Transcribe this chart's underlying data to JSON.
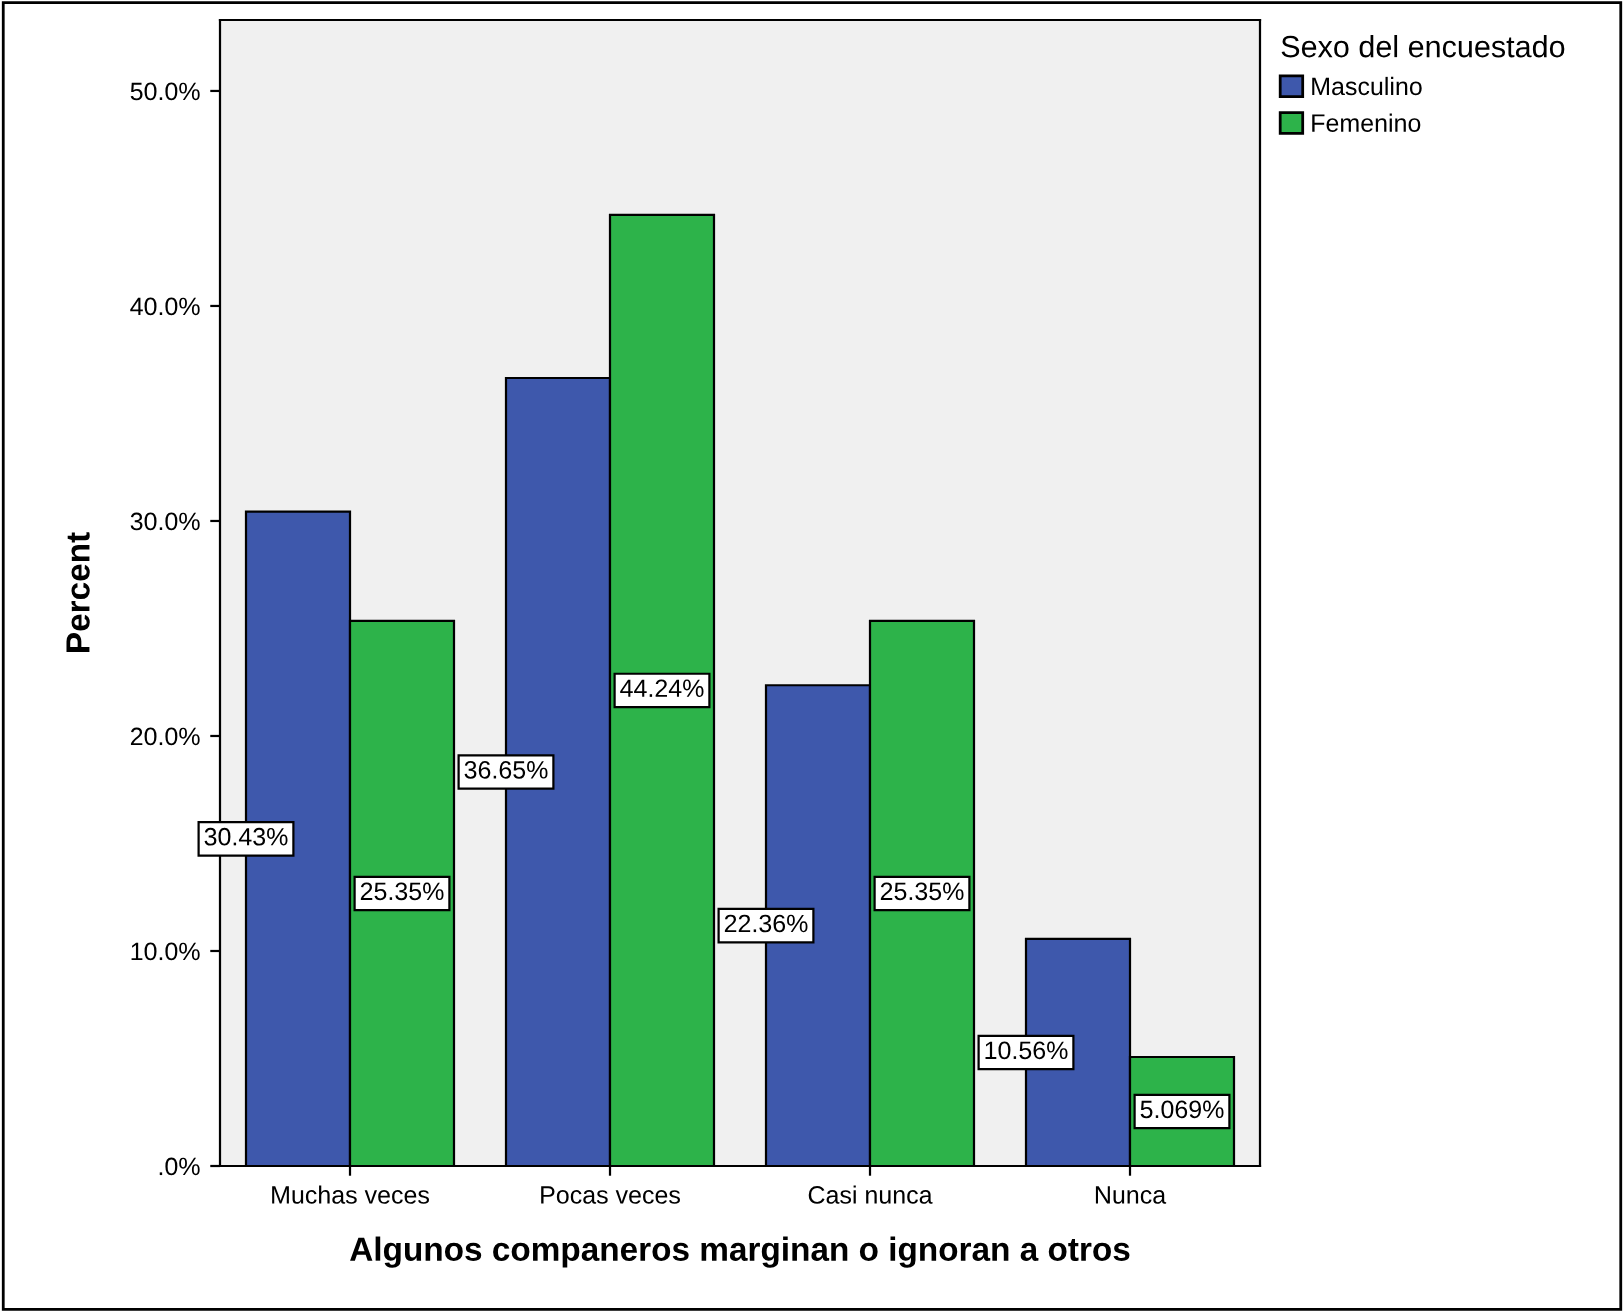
{
  "chart_data": {
    "type": "bar",
    "xlabel": "Algunos companeros marginan o ignoran a otros",
    "ylabel": "Percent",
    "legend_title": "Sexo del encuestado",
    "categories": [
      "Muchas veces",
      "Pocas veces",
      "Casi nunca",
      "Nunca"
    ],
    "series": [
      {
        "name": "Masculino",
        "color": "#3e58ac",
        "values": [
          30.43,
          36.65,
          22.36,
          10.56
        ],
        "value_labels": [
          "30.43%",
          "36.65%",
          "22.36%",
          "10.56%"
        ]
      },
      {
        "name": "Femenino",
        "color": "#2db34a",
        "values": [
          25.35,
          44.24,
          25.35,
          5.069
        ],
        "value_labels": [
          "25.35%",
          "44.24%",
          "25.35%",
          "5.069%"
        ]
      }
    ],
    "ylim": [
      0,
      53.3
    ],
    "yticks": [
      {
        "value": 0,
        "label": ".0%"
      },
      {
        "value": 10,
        "label": "10.0%"
      },
      {
        "value": 20,
        "label": "20.0%"
      },
      {
        "value": 30,
        "label": "30.0%"
      },
      {
        "value": 40,
        "label": "40.0%"
      },
      {
        "value": 50,
        "label": "50.0%"
      }
    ],
    "legend": "top right",
    "grid": false
  }
}
